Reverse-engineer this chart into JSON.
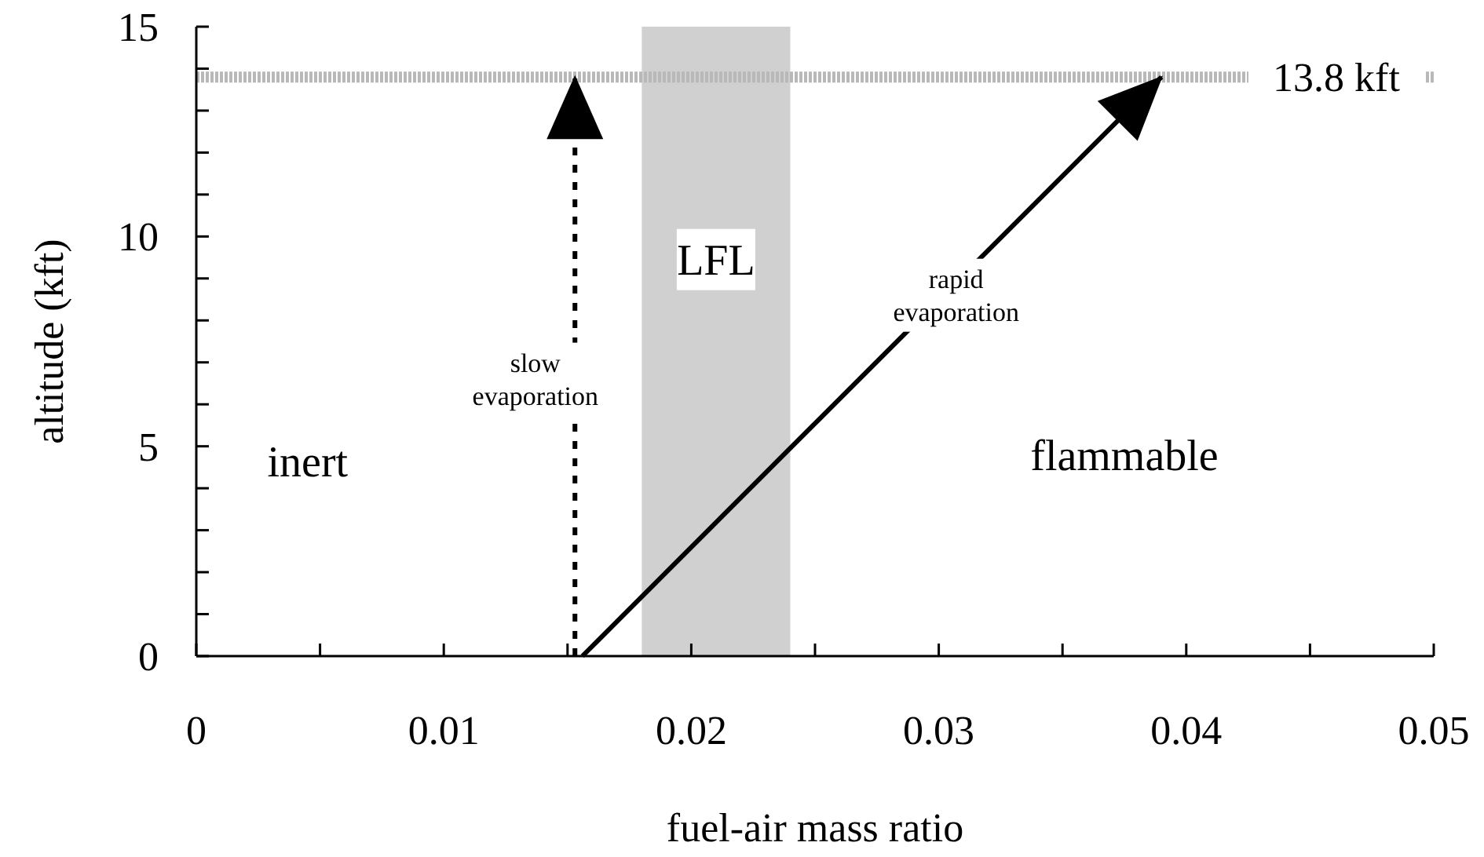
{
  "chart_data": {
    "type": "line",
    "xlabel": "fuel-air mass ratio",
    "ylabel": "altitude (kft)",
    "xlim": [
      0,
      0.05
    ],
    "ylim": [
      0,
      15
    ],
    "xticks": [
      0,
      {
        "value": 0.005,
        "label": null
      },
      0.01,
      {
        "value": 0.015,
        "label": null
      },
      0.02,
      {
        "value": 0.025,
        "label": null
      },
      0.03,
      {
        "value": 0.035,
        "label": null
      },
      0.04,
      {
        "value": 0.045,
        "label": null
      },
      0.05
    ],
    "yticks": [
      0,
      {
        "value": 1,
        "label": null
      },
      {
        "value": 2,
        "label": null
      },
      {
        "value": 3,
        "label": null
      },
      {
        "value": 4,
        "label": null
      },
      5,
      {
        "value": 6,
        "label": null
      },
      {
        "value": 7,
        "label": null
      },
      {
        "value": 8,
        "label": null
      },
      {
        "value": 9,
        "label": null
      },
      10,
      {
        "value": 11,
        "label": null
      },
      {
        "value": 12,
        "label": null
      },
      {
        "value": 13,
        "label": null
      },
      {
        "value": 14,
        "label": null
      },
      15
    ],
    "series": [
      {
        "color": "#000000",
        "x": [
          0.0153,
          0.0153
        ],
        "values": [
          0,
          13.8
        ],
        "line_style": "dashed"
      },
      {
        "color": "#000000",
        "x": [
          0.0156,
          0.039
        ],
        "values": [
          0,
          13.8
        ],
        "line_style": "solid"
      }
    ],
    "ref_lines": [
      {
        "axis": "y",
        "value": 13.8,
        "label": "13.8 kft",
        "color": "#b8b8b8"
      }
    ],
    "bands": [
      {
        "axis": "x",
        "from": 0.018,
        "to": 0.024,
        "label": "LFL",
        "color": "#d0d0d0"
      }
    ],
    "annotations": [
      "inert",
      "flammable",
      "slow evaporation",
      {
        "text": "rapid evaporation",
        "x": 0.0307,
        "y": 8.6
      }
    ]
  }
}
